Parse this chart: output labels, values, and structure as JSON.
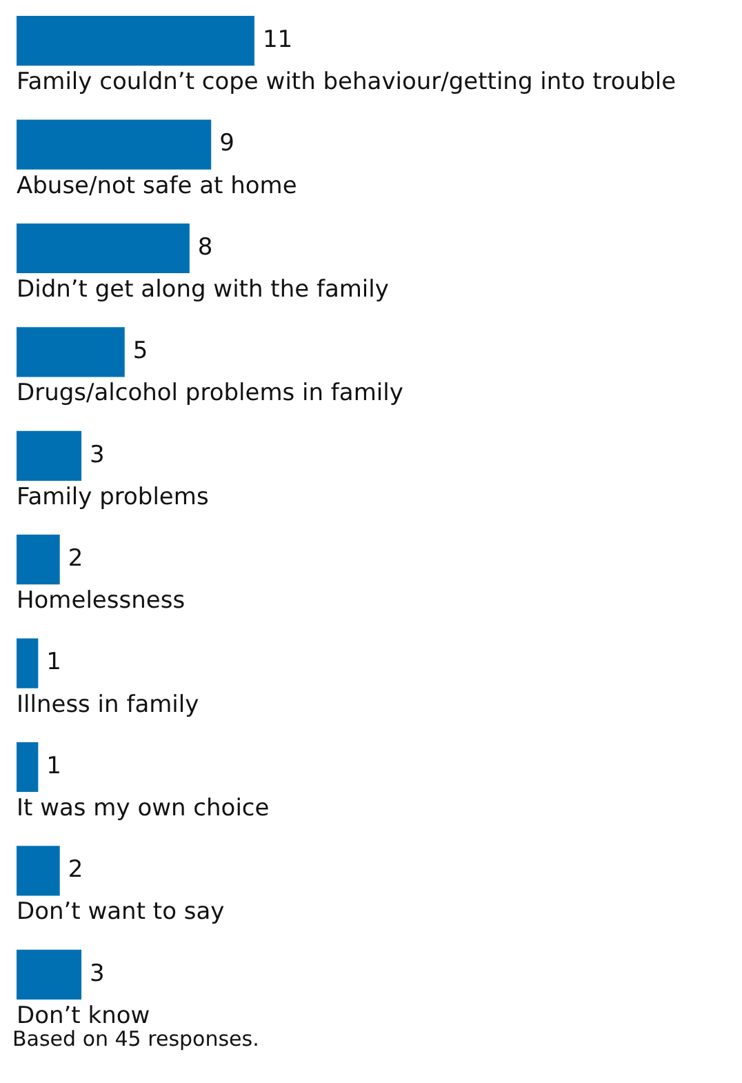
{
  "chart_data": {
    "type": "bar",
    "orientation": "horizontal",
    "categories": [
      "Family couldn’t cope with behaviour/getting into trouble",
      "Abuse/not safe at home",
      "Didn’t get along with the family",
      "Drugs/alcohol problems in family",
      "Family problems",
      "Homelessness",
      "Illness in family",
      "It was my own choice",
      "Don’t want to say",
      "Don’t know"
    ],
    "values": [
      11,
      9,
      8,
      5,
      3,
      2,
      1,
      1,
      2,
      3
    ],
    "color": "#0070b2",
    "data_labels": true,
    "annotations": [
      "Based on 45 responses."
    ]
  }
}
